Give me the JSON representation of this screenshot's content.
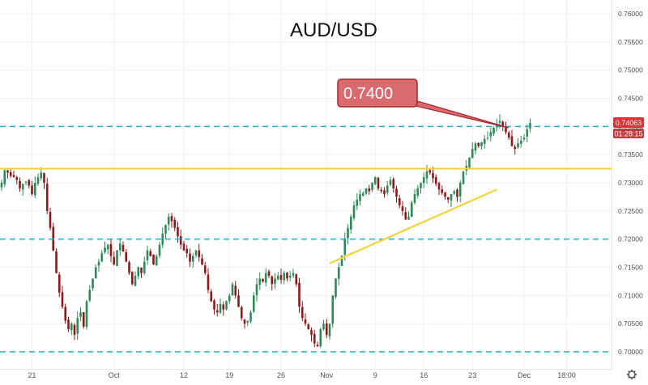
{
  "chart_data": {
    "type": "candlestick",
    "title": "AUD/USD",
    "y_range": [
      0.699,
      0.7625
    ],
    "y_ticks": [
      "0.76000",
      "0.75500",
      "0.75000",
      "0.74500",
      "0.74000",
      "0.73500",
      "0.73000",
      "0.72500",
      "0.72000",
      "0.71500",
      "0.71000",
      "0.70500",
      "0.70000"
    ],
    "x_ticks": [
      {
        "label": "21",
        "bar": 10
      },
      {
        "label": "Oct",
        "bar": 37
      },
      {
        "label": "12",
        "bar": 60
      },
      {
        "label": "19",
        "bar": 75
      },
      {
        "label": "26",
        "bar": 92
      },
      {
        "label": "Nov",
        "bar": 107
      },
      {
        "label": "9",
        "bar": 123
      },
      {
        "label": "16",
        "bar": 139
      },
      {
        "label": "23",
        "bar": 155
      },
      {
        "label": "Dec",
        "bar": 172
      },
      {
        "label": "18:00",
        "bar": 186
      }
    ],
    "closes": [
      0.73,
      0.7322,
      0.7318,
      0.7312,
      0.731,
      0.7305,
      0.729,
      0.7298,
      0.7302,
      0.7295,
      0.728,
      0.73,
      0.731,
      0.7318,
      0.73,
      0.725,
      0.722,
      0.718,
      0.714,
      0.7105,
      0.708,
      0.7055,
      0.704,
      0.705,
      0.703,
      0.706,
      0.707,
      0.7045,
      0.709,
      0.711,
      0.713,
      0.715,
      0.716,
      0.7175,
      0.7185,
      0.719,
      0.717,
      0.7155,
      0.718,
      0.7192,
      0.7178,
      0.716,
      0.714,
      0.712,
      0.7135,
      0.715,
      0.714,
      0.716,
      0.718,
      0.717,
      0.7155,
      0.717,
      0.719,
      0.721,
      0.7225,
      0.724,
      0.7232,
      0.722,
      0.7205,
      0.719,
      0.718,
      0.7175,
      0.716,
      0.717,
      0.718,
      0.7168,
      0.7155,
      0.714,
      0.711,
      0.709,
      0.7075,
      0.707,
      0.7085,
      0.7075,
      0.709,
      0.71,
      0.712,
      0.71,
      0.708,
      0.706,
      0.705,
      0.7055,
      0.707,
      0.71,
      0.712,
      0.713,
      0.7125,
      0.714,
      0.7135,
      0.712,
      0.713,
      0.7135,
      0.7128,
      0.714,
      0.713,
      0.7135,
      0.714,
      0.712,
      0.708,
      0.706,
      0.705,
      0.704,
      0.703,
      0.7015,
      0.701,
      0.704,
      0.705,
      0.703,
      0.705,
      0.71,
      0.713,
      0.715,
      0.717,
      0.72,
      0.722,
      0.724,
      0.726,
      0.727,
      0.728,
      0.7282,
      0.729,
      0.7285,
      0.73,
      0.731,
      0.729,
      0.7285,
      0.728,
      0.7295,
      0.7305,
      0.729,
      0.7275,
      0.726,
      0.725,
      0.7235,
      0.724,
      0.7265,
      0.728,
      0.729,
      0.73,
      0.731,
      0.732,
      0.7318,
      0.7308,
      0.7298,
      0.7288,
      0.7282,
      0.7275,
      0.727,
      0.728,
      0.7285,
      0.7275,
      0.73,
      0.732,
      0.733,
      0.7345,
      0.736,
      0.737,
      0.7365,
      0.7372,
      0.7378,
      0.738,
      0.739,
      0.7398,
      0.7405,
      0.741,
      0.74,
      0.739,
      0.738,
      0.7365,
      0.736,
      0.737,
      0.7375,
      0.738,
      0.7395,
      0.7406
    ],
    "annotations": {
      "callout_text": "0.7400",
      "price_badge": "0.74063",
      "countdown_badge": "01:28:15"
    },
    "horizontal_levels": [
      {
        "value": 0.74,
        "style": "dashed",
        "color": "#26a8c4"
      },
      {
        "value": 0.72,
        "style": "dashed",
        "color": "#26a8c4"
      },
      {
        "value": 0.7,
        "style": "dashed",
        "color": "#26a8c4"
      },
      {
        "value": 0.7325,
        "style": "solid",
        "color": "#f3d33c"
      }
    ],
    "trendline": {
      "color": "#f3d33c",
      "from": {
        "bar": 108,
        "value": 0.7157
      },
      "to": {
        "bar": 163,
        "value": 0.7288
      }
    },
    "colors": {
      "up": "#2e8b57",
      "down": "#8b1a1a",
      "grid": "#eef0f3",
      "callout_fill": "#d96a6e",
      "callout_border": "#a8272f",
      "badge_price": "#d8333a",
      "badge_timer": "#c33a40"
    }
  },
  "icons": {
    "settings": "gear-icon"
  }
}
